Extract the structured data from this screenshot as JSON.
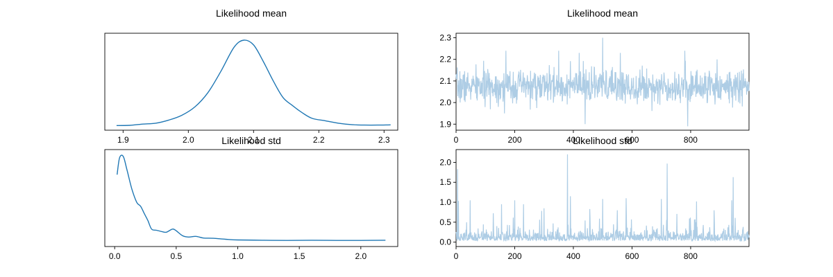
{
  "colors": {
    "density": "#1f77b4",
    "trace": "#aecde5",
    "axes": "#000000"
  },
  "chart_data": [
    {
      "type": "line",
      "title": "Likelihood mean",
      "xlabel": "",
      "ylabel": "",
      "xlim": [
        1.872,
        2.321
      ],
      "xticks": [
        "1.9",
        "2.0",
        "2.1",
        "2.2",
        "2.3"
      ],
      "yticks": [],
      "series": [
        {
          "x": [
            1.89,
            1.91,
            1.93,
            1.95,
            1.97,
            1.99,
            2.01,
            2.03,
            2.05,
            2.07,
            2.085,
            2.1,
            2.115,
            2.13,
            2.145,
            2.16,
            2.175,
            2.19,
            2.21,
            2.23,
            2.25,
            2.27,
            2.29,
            2.31
          ],
          "y": [
            0.02,
            0.03,
            0.08,
            0.12,
            0.25,
            0.45,
            0.8,
            1.4,
            2.3,
            3.3,
            3.6,
            3.4,
            2.7,
            1.9,
            1.2,
            0.85,
            0.55,
            0.32,
            0.22,
            0.12,
            0.06,
            0.04,
            0.04,
            0.05
          ]
        }
      ]
    },
    {
      "type": "line",
      "title": "Likelihood mean",
      "xlabel": "",
      "ylabel": "",
      "xlim": [
        0,
        999
      ],
      "ylim": [
        1.872,
        2.321
      ],
      "xticks": [
        "0",
        "200",
        "400",
        "600",
        "800"
      ],
      "yticks": [
        "1.9",
        "2.0",
        "2.1",
        "2.2",
        "2.3"
      ],
      "trace": {
        "n": 1000,
        "mean": 2.075,
        "sd": 0.038,
        "seed": 7,
        "spikes": [
          [
            170,
            2.24
          ],
          [
            350,
            2.24
          ],
          [
            420,
            2.23
          ],
          [
            440,
            1.9
          ],
          [
            500,
            2.3
          ],
          [
            560,
            2.23
          ],
          [
            780,
            2.24
          ],
          [
            790,
            1.89
          ],
          [
            890,
            2.2
          ],
          [
            165,
            1.95
          ]
        ]
      }
    },
    {
      "type": "line",
      "title": "Likelihood std",
      "xlabel": "",
      "ylabel": "",
      "xlim": [
        -0.08,
        2.3
      ],
      "xticks": [
        "0.0",
        "0.5",
        "1.0",
        "1.5",
        "2.0"
      ],
      "yticks": [],
      "series": [
        {
          "x": [
            0.02,
            0.04,
            0.07,
            0.1,
            0.14,
            0.18,
            0.21,
            0.24,
            0.27,
            0.3,
            0.34,
            0.38,
            0.42,
            0.47,
            0.5,
            0.55,
            0.6,
            0.66,
            0.72,
            0.8,
            0.9,
            1.0,
            1.2,
            1.4,
            1.6,
            1.8,
            2.0,
            2.2
          ],
          "y": [
            2.8,
            3.5,
            3.55,
            3.0,
            2.2,
            1.65,
            1.5,
            1.2,
            0.9,
            0.55,
            0.5,
            0.45,
            0.42,
            0.55,
            0.48,
            0.28,
            0.22,
            0.25,
            0.18,
            0.17,
            0.13,
            0.1,
            0.09,
            0.08,
            0.09,
            0.08,
            0.08,
            0.09
          ]
        }
      ]
    },
    {
      "type": "line",
      "title": "Likelihood std",
      "xlabel": "",
      "ylabel": "",
      "xlim": [
        0,
        999
      ],
      "ylim": [
        -0.11,
        2.32
      ],
      "xticks": [
        "0",
        "200",
        "400",
        "600",
        "800"
      ],
      "yticks": [
        "0.0",
        "0.5",
        "1.0",
        "1.5",
        "2.0"
      ],
      "trace": {
        "n": 1000,
        "seed": 13,
        "spikes": [
          [
            5,
            1.83
          ],
          [
            8,
            1.03
          ],
          [
            48,
            1.05
          ],
          [
            155,
            0.95
          ],
          [
            200,
            1.05
          ],
          [
            230,
            0.95
          ],
          [
            300,
            0.85
          ],
          [
            380,
            2.2
          ],
          [
            390,
            1.15
          ],
          [
            500,
            1.08
          ],
          [
            550,
            0.8
          ],
          [
            580,
            1.1
          ],
          [
            700,
            1.08
          ],
          [
            720,
            1.97
          ],
          [
            820,
            1.02
          ],
          [
            880,
            0.8
          ],
          [
            940,
            1.05
          ],
          [
            945,
            1.63
          ]
        ]
      }
    }
  ]
}
